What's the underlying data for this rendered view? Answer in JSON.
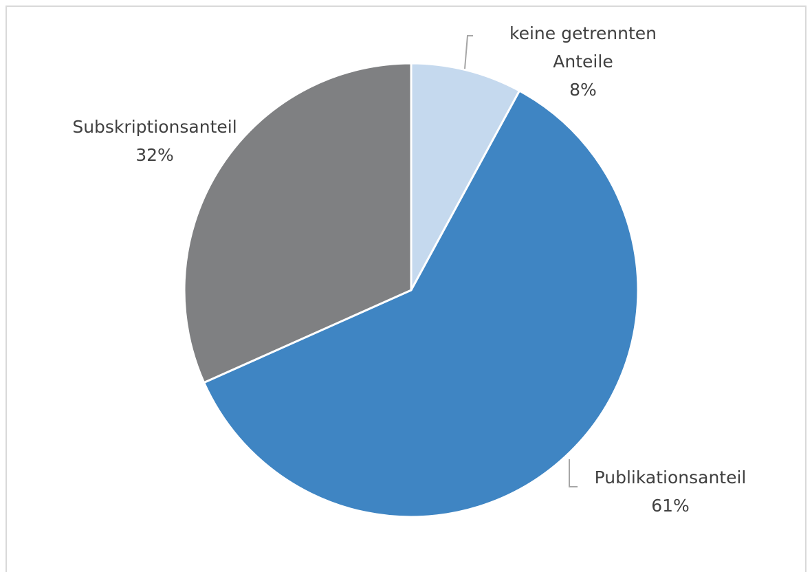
{
  "chart_data": {
    "type": "pie",
    "categories": [
      "keine getrennten Anteile",
      "Publikationsanteil",
      "Subskriptionsanteil"
    ],
    "values": [
      8,
      61,
      32
    ],
    "value_labels": [
      "8%",
      "61%",
      "32%"
    ],
    "colors": [
      "#c5d9ee",
      "#3f85c3",
      "#7f8082"
    ]
  }
}
